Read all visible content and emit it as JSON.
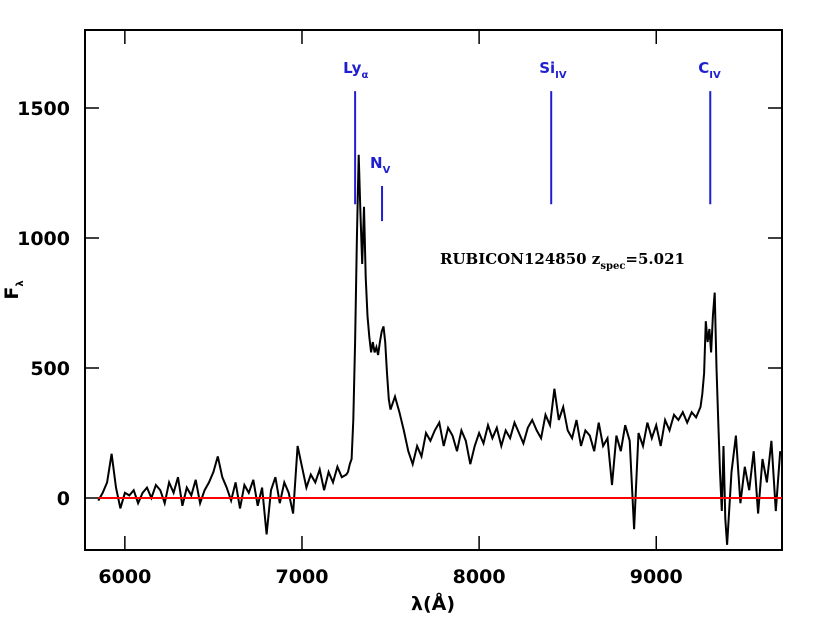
{
  "chart_data": {
    "type": "line",
    "xlabel": "λ(Å)",
    "ylabel": {
      "text": "F",
      "sub": "λ"
    },
    "annotation": {
      "text": "RUBICON124850  z",
      "sub": "spec",
      "after": "=5.021"
    },
    "xlim": [
      5775,
      9710
    ],
    "ylim": [
      -200,
      1800
    ],
    "xticks": [
      6000,
      7000,
      8000,
      9000
    ],
    "yticks": [
      0,
      500,
      1000,
      1500
    ],
    "hline": {
      "y": 0,
      "color": "#ff0000"
    },
    "x": [
      5850,
      5875,
      5900,
      5925,
      5950,
      5975,
      6000,
      6025,
      6050,
      6075,
      6100,
      6125,
      6150,
      6175,
      6200,
      6225,
      6250,
      6275,
      6300,
      6325,
      6350,
      6375,
      6400,
      6425,
      6450,
      6475,
      6500,
      6525,
      6550,
      6575,
      6600,
      6625,
      6650,
      6675,
      6700,
      6725,
      6750,
      6775,
      6800,
      6825,
      6850,
      6875,
      6900,
      6925,
      6950,
      6975,
      7000,
      7025,
      7050,
      7075,
      7100,
      7125,
      7150,
      7175,
      7200,
      7225,
      7250,
      7260,
      7270,
      7280,
      7290,
      7300,
      7310,
      7320,
      7330,
      7340,
      7350,
      7360,
      7370,
      7380,
      7390,
      7400,
      7410,
      7420,
      7430,
      7440,
      7450,
      7460,
      7470,
      7480,
      7490,
      7500,
      7525,
      7550,
      7575,
      7600,
      7625,
      7650,
      7675,
      7700,
      7725,
      7750,
      7775,
      7800,
      7825,
      7850,
      7875,
      7900,
      7925,
      7950,
      7975,
      8000,
      8025,
      8050,
      8075,
      8100,
      8125,
      8150,
      8175,
      8200,
      8225,
      8250,
      8275,
      8300,
      8325,
      8350,
      8375,
      8400,
      8425,
      8450,
      8475,
      8500,
      8525,
      8550,
      8575,
      8600,
      8625,
      8650,
      8675,
      8700,
      8725,
      8750,
      8775,
      8800,
      8825,
      8850,
      8875,
      8900,
      8925,
      8950,
      8975,
      9000,
      9025,
      9050,
      9075,
      9100,
      9125,
      9150,
      9175,
      9200,
      9225,
      9250,
      9260,
      9270,
      9280,
      9290,
      9300,
      9310,
      9320,
      9330,
      9340,
      9350,
      9360,
      9370,
      9380,
      9390,
      9400,
      9425,
      9450,
      9475,
      9500,
      9525,
      9550,
      9575,
      9600,
      9625,
      9650,
      9675,
      9700
    ],
    "series": [
      {
        "color": "#000000",
        "values": [
          -10,
          20,
          60,
          170,
          40,
          -40,
          20,
          10,
          30,
          -20,
          20,
          40,
          0,
          50,
          30,
          -20,
          60,
          20,
          80,
          -30,
          40,
          10,
          70,
          -20,
          30,
          60,
          100,
          160,
          80,
          40,
          -10,
          60,
          -40,
          50,
          20,
          70,
          -30,
          40,
          -140,
          30,
          80,
          -20,
          60,
          20,
          -60,
          200,
          120,
          40,
          90,
          60,
          110,
          30,
          100,
          60,
          120,
          80,
          90,
          100,
          130,
          150,
          300,
          600,
          1000,
          1320,
          1100,
          900,
          1120,
          850,
          700,
          620,
          560,
          600,
          560,
          580,
          550,
          600,
          640,
          660,
          600,
          480,
          380,
          340,
          390,
          330,
          260,
          180,
          130,
          200,
          160,
          250,
          220,
          260,
          290,
          200,
          270,
          240,
          180,
          260,
          220,
          130,
          200,
          250,
          210,
          280,
          230,
          270,
          200,
          260,
          230,
          290,
          250,
          210,
          270,
          300,
          260,
          230,
          320,
          280,
          420,
          300,
          350,
          260,
          230,
          300,
          200,
          260,
          240,
          180,
          290,
          200,
          230,
          50,
          240,
          180,
          280,
          220,
          -120,
          250,
          200,
          290,
          230,
          280,
          200,
          300,
          260,
          320,
          300,
          330,
          290,
          330,
          310,
          350,
          400,
          480,
          680,
          600,
          650,
          560,
          700,
          790,
          500,
          300,
          100,
          -50,
          200,
          -80,
          -180,
          100,
          240,
          -20,
          120,
          30,
          180,
          -60,
          150,
          60,
          220,
          -50,
          180
        ]
      }
    ],
    "lines": {
      "color": "#1f1fd0",
      "items": [
        {
          "label": "Ly",
          "sub": "α",
          "x": 7300,
          "ymin": 1130,
          "ymax": 1565
        },
        {
          "label": "N",
          "sub": "V",
          "x": 7452,
          "ymin": 1065,
          "ymax": 1200
        },
        {
          "label": "Si",
          "sub": "IV",
          "x": 8407,
          "ymin": 1130,
          "ymax": 1565
        },
        {
          "label": "C",
          "sub": "IV",
          "x": 9305,
          "ymin": 1130,
          "ymax": 1565
        }
      ]
    }
  }
}
